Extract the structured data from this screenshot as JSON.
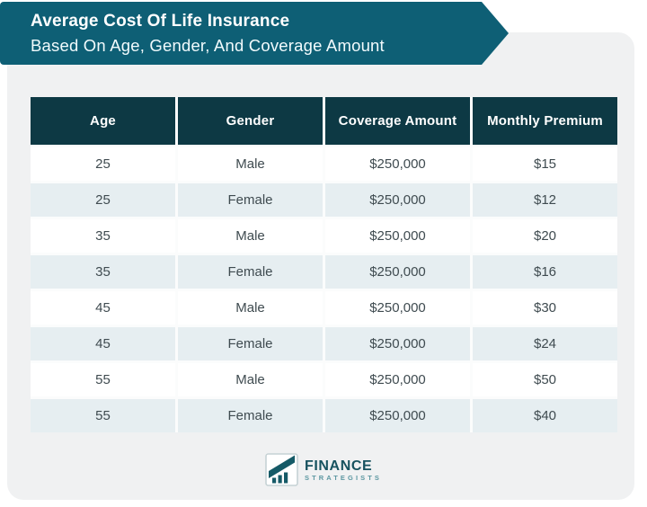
{
  "banner": {
    "title": "Average Cost Of Life Insurance",
    "subtitle": "Based On Age, Gender, And Coverage Amount"
  },
  "table": {
    "headers": [
      "Age",
      "Gender",
      "Coverage Amount",
      "Monthly Premium"
    ],
    "rows": [
      [
        "25",
        "Male",
        "$250,000",
        "$15"
      ],
      [
        "25",
        "Female",
        "$250,000",
        "$12"
      ],
      [
        "35",
        "Male",
        "$250,000",
        "$20"
      ],
      [
        "35",
        "Female",
        "$250,000",
        "$16"
      ],
      [
        "45",
        "Male",
        "$250,000",
        "$30"
      ],
      [
        "45",
        "Female",
        "$250,000",
        "$24"
      ],
      [
        "55",
        "Male",
        "$250,000",
        "$50"
      ],
      [
        "55",
        "Female",
        "$250,000",
        "$40"
      ]
    ]
  },
  "chart_data": {
    "type": "table",
    "title": "Average Cost Of Life Insurance Based On Age, Gender, And Coverage Amount",
    "columns": [
      "Age",
      "Gender",
      "Coverage Amount",
      "Monthly Premium"
    ],
    "rows": [
      [
        25,
        "Male",
        250000,
        15
      ],
      [
        25,
        "Female",
        250000,
        12
      ],
      [
        35,
        "Male",
        250000,
        20
      ],
      [
        35,
        "Female",
        250000,
        16
      ],
      [
        45,
        "Male",
        250000,
        30
      ],
      [
        45,
        "Female",
        250000,
        24
      ],
      [
        55,
        "Male",
        250000,
        50
      ],
      [
        55,
        "Female",
        250000,
        40
      ]
    ],
    "units": {
      "coverage_amount": "USD",
      "monthly_premium": "USD per month"
    }
  },
  "logo": {
    "name_line1": "FINANCE",
    "name_line2": "STRATEGISTS"
  },
  "colors": {
    "banner_teal": "#0e5f75",
    "header_dark": "#0d3944",
    "row_alt": "#e6eef1",
    "card_bg": "#f0f1f2",
    "body_text": "#3f4b50",
    "logo_teal": "#17525f"
  }
}
